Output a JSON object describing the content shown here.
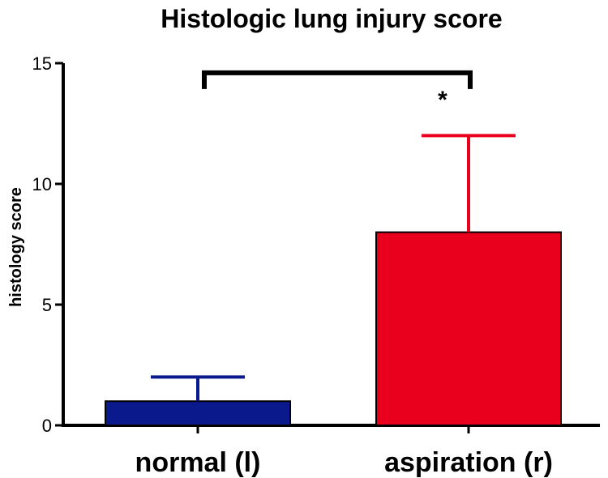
{
  "chart_data": {
    "type": "bar",
    "title": "Histologic lung injury score",
    "xlabel": "",
    "ylabel": "histology score",
    "ylim": [
      0,
      15
    ],
    "yticks": [
      0,
      5,
      10,
      15
    ],
    "categories": [
      "normal (l)",
      "aspiration (r)"
    ],
    "values": [
      1,
      8
    ],
    "error_upper": [
      2,
      12
    ],
    "colors": [
      "#0a1a8c",
      "#e8001c"
    ],
    "significance": {
      "between": [
        "normal (l)",
        "aspiration (r)"
      ],
      "y": 14.6,
      "label": "*"
    },
    "grid": false,
    "legend": "none"
  }
}
